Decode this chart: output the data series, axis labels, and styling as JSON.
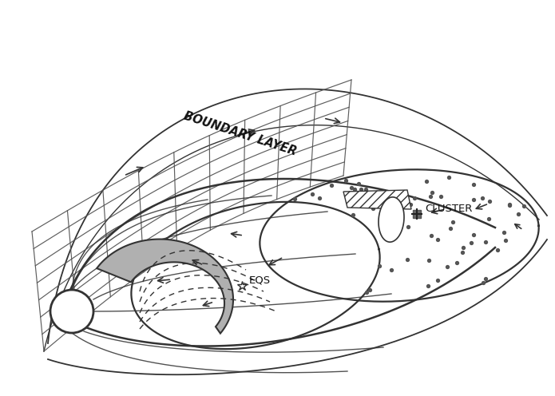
{
  "bg_color": "#ffffff",
  "line_color": "#333333",
  "dot_color": "#555555",
  "label_boundary": "BOUNDARY LAYER",
  "label_cluster": "CLUSTER",
  "label_eqs": "EQS"
}
